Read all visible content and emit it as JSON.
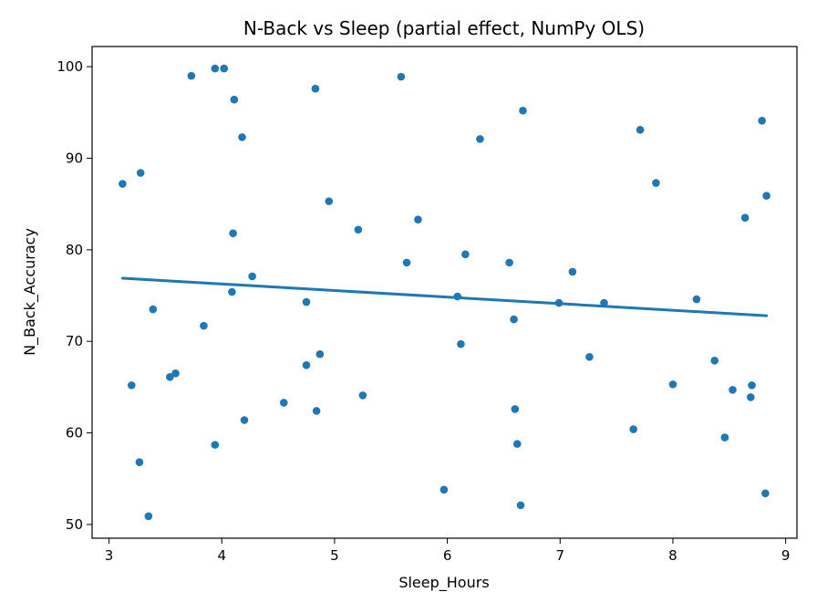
{
  "chart_data": {
    "type": "scatter",
    "title": "N-Back vs Sleep (partial effect, NumPy OLS)",
    "xlabel": "Sleep_Hours",
    "ylabel": "N_Back_Accuracy",
    "xlim": [
      2.85,
      9.1
    ],
    "ylim": [
      48.5,
      102.2
    ],
    "xticks": [
      3,
      4,
      5,
      6,
      7,
      8,
      9
    ],
    "yticks": [
      50,
      60,
      70,
      80,
      90,
      100
    ],
    "grid": false,
    "point_color": "#1f77b4",
    "line_color": "#1f77b4",
    "points": [
      [
        3.12,
        87.2
      ],
      [
        3.2,
        65.2
      ],
      [
        3.27,
        56.8
      ],
      [
        3.28,
        88.4
      ],
      [
        3.35,
        50.9
      ],
      [
        3.39,
        73.5
      ],
      [
        3.54,
        66.1
      ],
      [
        3.59,
        66.5
      ],
      [
        3.73,
        99.0
      ],
      [
        3.84,
        71.7
      ],
      [
        3.94,
        99.8
      ],
      [
        3.94,
        58.7
      ],
      [
        4.02,
        99.8
      ],
      [
        4.09,
        75.4
      ],
      [
        4.1,
        81.8
      ],
      [
        4.11,
        96.4
      ],
      [
        4.18,
        92.3
      ],
      [
        4.2,
        61.4
      ],
      [
        4.27,
        77.1
      ],
      [
        4.55,
        63.3
      ],
      [
        4.75,
        74.3
      ],
      [
        4.75,
        67.4
      ],
      [
        4.83,
        97.6
      ],
      [
        4.84,
        62.4
      ],
      [
        4.87,
        68.6
      ],
      [
        4.95,
        85.3
      ],
      [
        5.21,
        82.2
      ],
      [
        5.25,
        64.1
      ],
      [
        5.59,
        98.9
      ],
      [
        5.64,
        78.6
      ],
      [
        5.74,
        83.3
      ],
      [
        5.97,
        53.8
      ],
      [
        6.09,
        74.9
      ],
      [
        6.12,
        69.7
      ],
      [
        6.16,
        79.5
      ],
      [
        6.29,
        92.1
      ],
      [
        6.55,
        78.6
      ],
      [
        6.59,
        72.4
      ],
      [
        6.6,
        62.6
      ],
      [
        6.62,
        58.8
      ],
      [
        6.65,
        52.1
      ],
      [
        6.67,
        95.2
      ],
      [
        6.99,
        74.2
      ],
      [
        7.11,
        77.6
      ],
      [
        7.26,
        68.3
      ],
      [
        7.39,
        74.2
      ],
      [
        7.65,
        60.4
      ],
      [
        7.71,
        93.1
      ],
      [
        7.85,
        87.3
      ],
      [
        8.0,
        65.3
      ],
      [
        8.21,
        74.6
      ],
      [
        8.37,
        67.9
      ],
      [
        8.46,
        59.5
      ],
      [
        8.53,
        64.7
      ],
      [
        8.64,
        83.5
      ],
      [
        8.69,
        63.9
      ],
      [
        8.7,
        65.2
      ],
      [
        8.79,
        94.1
      ],
      [
        8.82,
        53.4
      ],
      [
        8.83,
        85.9
      ]
    ],
    "fit_line": {
      "x": [
        3.12,
        8.83
      ],
      "y": [
        76.9,
        72.8
      ]
    }
  }
}
